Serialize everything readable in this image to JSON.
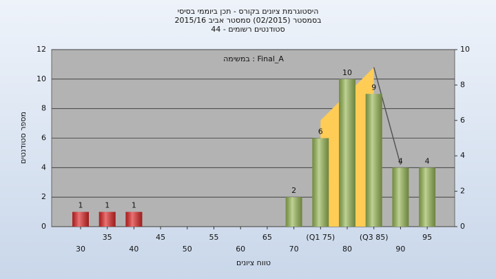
{
  "chart_data": {
    "type": "bar",
    "title": [
      "היסטוגרמת ציונים בקורס - תכן ביוממי בסיסי",
      "בסמסטר  (02/2015)  סמסטר אביב 2015/16",
      "סטודנטים רשומים - 44"
    ],
    "annotation": "במשימה : Final_A",
    "x_label": "טווח ציונים",
    "y_label": "מספר סטודנטים",
    "categories": [
      "30",
      "35",
      "40",
      "45",
      "50",
      "55",
      "60",
      "65",
      "70",
      "(Q1 75)",
      "80",
      "(Q3 85)",
      "90",
      "95"
    ],
    "values": [
      1,
      1,
      1,
      null,
      null,
      null,
      null,
      null,
      2,
      6,
      10,
      9,
      4,
      4
    ],
    "bar_colors": [
      "#e02828",
      "#e02828",
      "#e02828",
      "#9bbb59",
      "#9bbb59",
      "#9bbb59",
      "#9bbb59",
      "#9bbb59",
      "#9bbb59",
      "#9bbb59",
      "#9bbb59",
      "#9bbb59",
      "#9bbb59",
      "#9bbb59"
    ],
    "overlay": [
      {
        "type": "area",
        "color": "#ffcc55",
        "axis": "y2",
        "values": [
          null,
          null,
          null,
          null,
          null,
          null,
          null,
          null,
          null,
          6,
          7.5,
          9,
          null,
          null
        ]
      },
      {
        "type": "line",
        "color": "#555555",
        "axis": "y2",
        "values": [
          null,
          null,
          null,
          null,
          null,
          null,
          null,
          null,
          null,
          null,
          null,
          9,
          3.5,
          null
        ]
      }
    ],
    "ylim": [
      0,
      12
    ],
    "yticks": [
      0,
      2,
      4,
      6,
      8,
      10,
      12
    ],
    "y2lim": [
      0,
      10
    ],
    "y2ticks": [
      0,
      2,
      4,
      6,
      8,
      10
    ],
    "grid": true
  }
}
